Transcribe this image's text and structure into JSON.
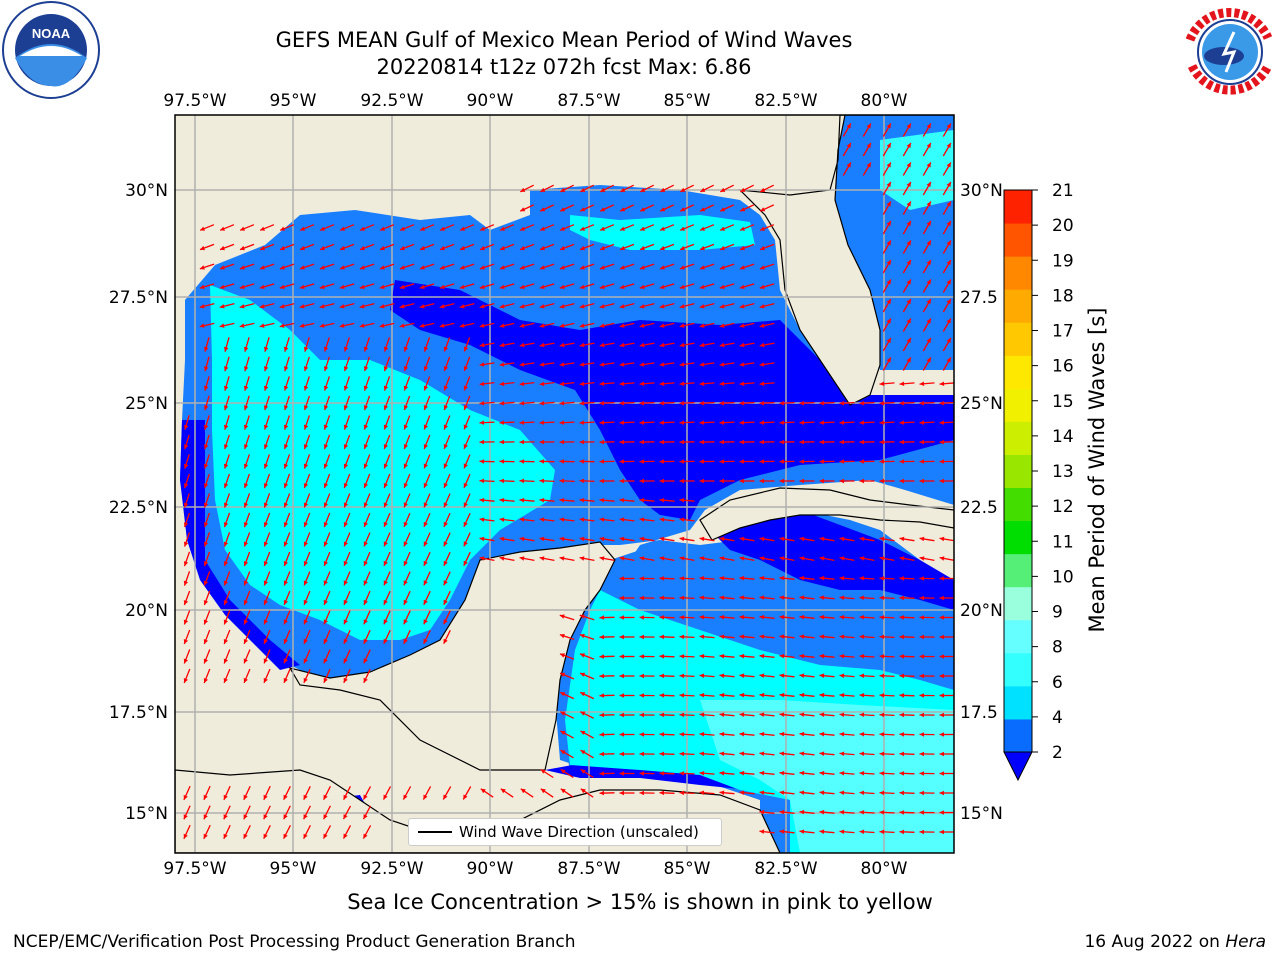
{
  "header": {
    "title_line1": "GEFS MEAN Gulf of Mexico Mean Period of Wind Waves",
    "title_line2": "20220814 t12z 072h fcst   Max: 6.86"
  },
  "logos": {
    "left": "NOAA",
    "right": "NATIONAL WEATHER SERVICE"
  },
  "map": {
    "lon_labels_top": [
      "97.5°W",
      "95°W",
      "92.5°W",
      "90°W",
      "87.5°W",
      "85°W",
      "82.5°W",
      "80°W"
    ],
    "lon_labels_bottom": [
      "97.5°W",
      "95°W",
      "92.5°W",
      "90°W",
      "87.5°W",
      "85°W",
      "82.5°W",
      "80°W"
    ],
    "lat_labels_left": [
      "30°N",
      "27.5°N",
      "25°N",
      "22.5°N",
      "20°N",
      "17.5°N",
      "15°N"
    ],
    "lat_labels_right": [
      "30°N",
      "27.5",
      "25°N",
      "22.5",
      "20°N",
      "17.5",
      "15°N"
    ],
    "legend_label": "Wind Wave Direction (unscaled)",
    "colors": {
      "land": "#efecdb",
      "ocean_2_4": "#1a7fff",
      "ocean_low": "#0000ff",
      "ocean_4_6": "#00ffff",
      "ocean_6_8": "#44ffff",
      "arrow": "#ff0000",
      "grid": "#b0b0b0"
    }
  },
  "colorbar": {
    "label": "Mean Period of Wind Waves [s]",
    "ticks": [
      "2",
      "4",
      "6",
      "8",
      "9",
      "10",
      "11",
      "12",
      "13",
      "14",
      "15",
      "16",
      "17",
      "18",
      "19",
      "20",
      "21"
    ],
    "colors": [
      "#0a6cff",
      "#00e1ff",
      "#33ffff",
      "#66ffff",
      "#99ffdd",
      "#55ee77",
      "#00dd00",
      "#44dd00",
      "#99e600",
      "#ccee00",
      "#f0f000",
      "#ffe800",
      "#ffc800",
      "#ffaa00",
      "#ff8800",
      "#ff5500",
      "#ff2200",
      "#ff0000"
    ],
    "extend_color": "#0000ff"
  },
  "footer": {
    "ice_note": "Sea Ice Concentration > 15% is shown in pink to yellow",
    "left": "NCEP/EMC/Verification Post Processing Product Generation Branch",
    "right_date": "16 Aug 2022 on",
    "right_machine": "Hera"
  }
}
